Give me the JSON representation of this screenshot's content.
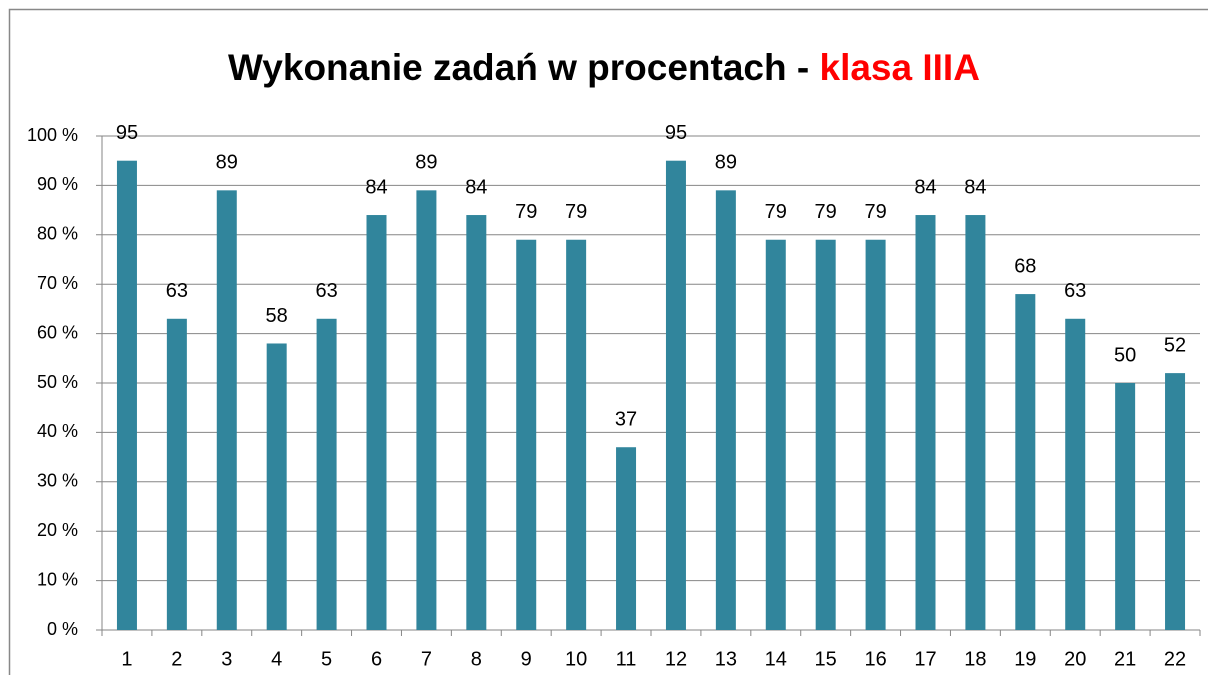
{
  "chart_data": {
    "type": "bar",
    "title_parts": [
      "Wykonanie zadań w procentach - ",
      "klasa IIIA"
    ],
    "title_colors": [
      "#000000",
      "#ff0000"
    ],
    "categories": [
      "1",
      "2",
      "3",
      "4",
      "5",
      "6",
      "7",
      "8",
      "9",
      "10",
      "11",
      "12",
      "13",
      "14",
      "15",
      "16",
      "17",
      "18",
      "19",
      "20",
      "21",
      "22"
    ],
    "values": [
      95,
      63,
      89,
      58,
      63,
      84,
      89,
      84,
      79,
      79,
      37,
      95,
      89,
      79,
      79,
      79,
      84,
      84,
      68,
      63,
      50,
      52
    ],
    "color": "#31859c",
    "ylim": [
      0,
      100
    ],
    "yticks": [
      {
        "value": 0,
        "label": "0 %"
      },
      {
        "value": 10,
        "label": "10 %"
      },
      {
        "value": 20,
        "label": "20 %"
      },
      {
        "value": 30,
        "label": "30 %"
      },
      {
        "value": 40,
        "label": "40 %"
      },
      {
        "value": 50,
        "label": "50 %"
      },
      {
        "value": 60,
        "label": "60 %"
      },
      {
        "value": 70,
        "label": "70 %"
      },
      {
        "value": 80,
        "label": "80 %"
      },
      {
        "value": 90,
        "label": "90 %"
      },
      {
        "value": 100,
        "label": "100 %"
      }
    ],
    "grid": true
  }
}
